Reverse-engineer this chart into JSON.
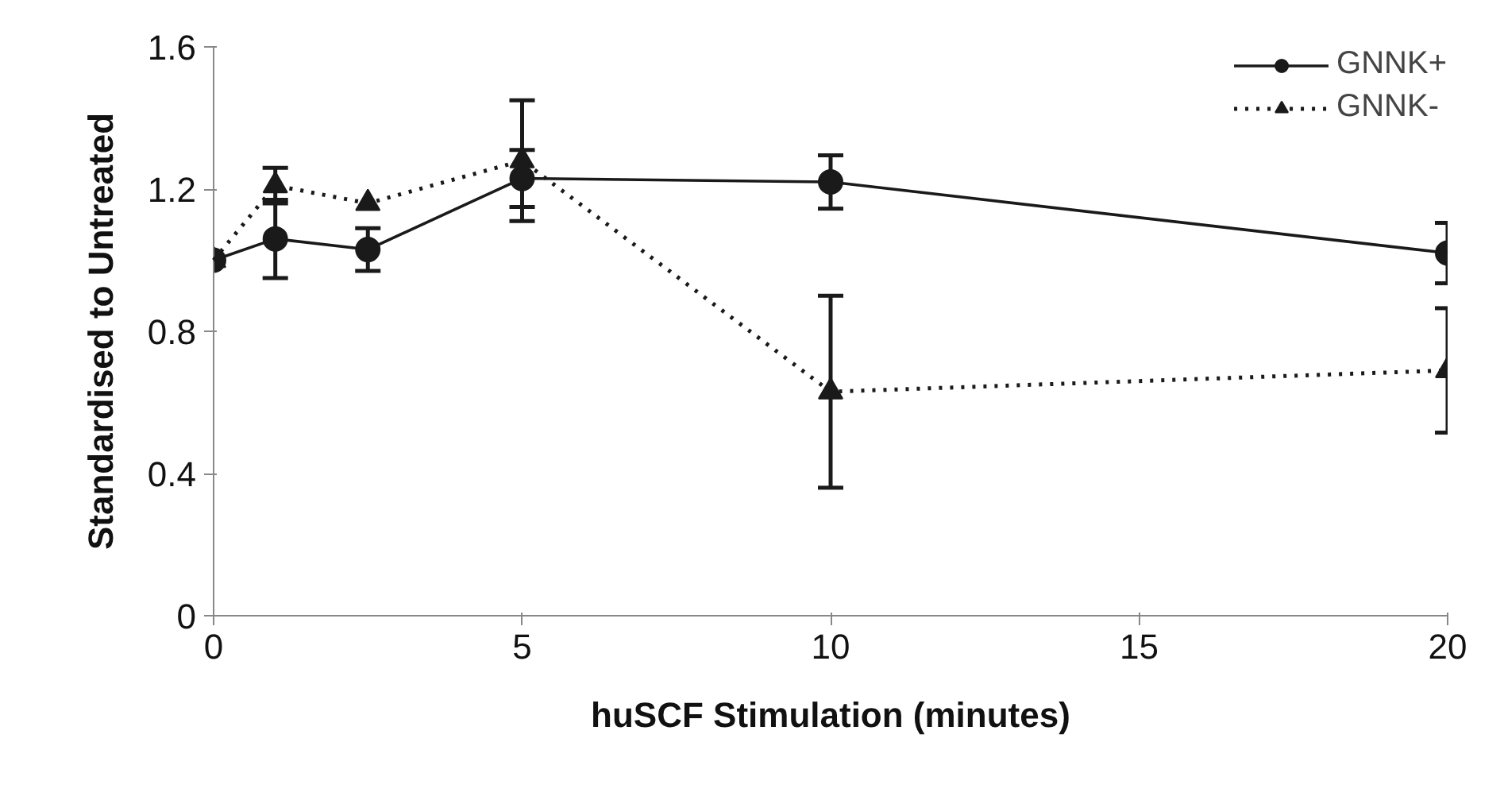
{
  "chart_data": {
    "type": "line",
    "xlabel": "huSCF Stimulation (minutes)",
    "ylabel": "Standardised to Untreated",
    "x": [
      0,
      1,
      2.5,
      5,
      10,
      20
    ],
    "series": [
      {
        "name": "GNNK+",
        "color": "#1a1a1a",
        "marker": "circle",
        "line_style": "solid",
        "values": [
          1.0,
          1.06,
          1.03,
          1.23,
          1.22,
          1.02
        ],
        "errors": [
          null,
          0.11,
          0.06,
          0.08,
          0.075,
          0.085
        ]
      },
      {
        "name": "GNNK-",
        "color": "#1a1a1a",
        "marker": "triangle",
        "line_style": "dotted",
        "values": [
          1.0,
          1.21,
          1.16,
          1.28,
          0.63,
          0.69
        ],
        "errors": [
          null,
          0.05,
          null,
          0.17,
          0.27,
          0.175
        ]
      }
    ],
    "xlim": [
      0,
      20
    ],
    "xticks": [
      0,
      5,
      10,
      15,
      20
    ],
    "ylim": [
      0,
      1.6
    ],
    "yticks": [
      0,
      0.4,
      0.8,
      1.2,
      1.6
    ],
    "grid": false,
    "legend": "top right"
  }
}
